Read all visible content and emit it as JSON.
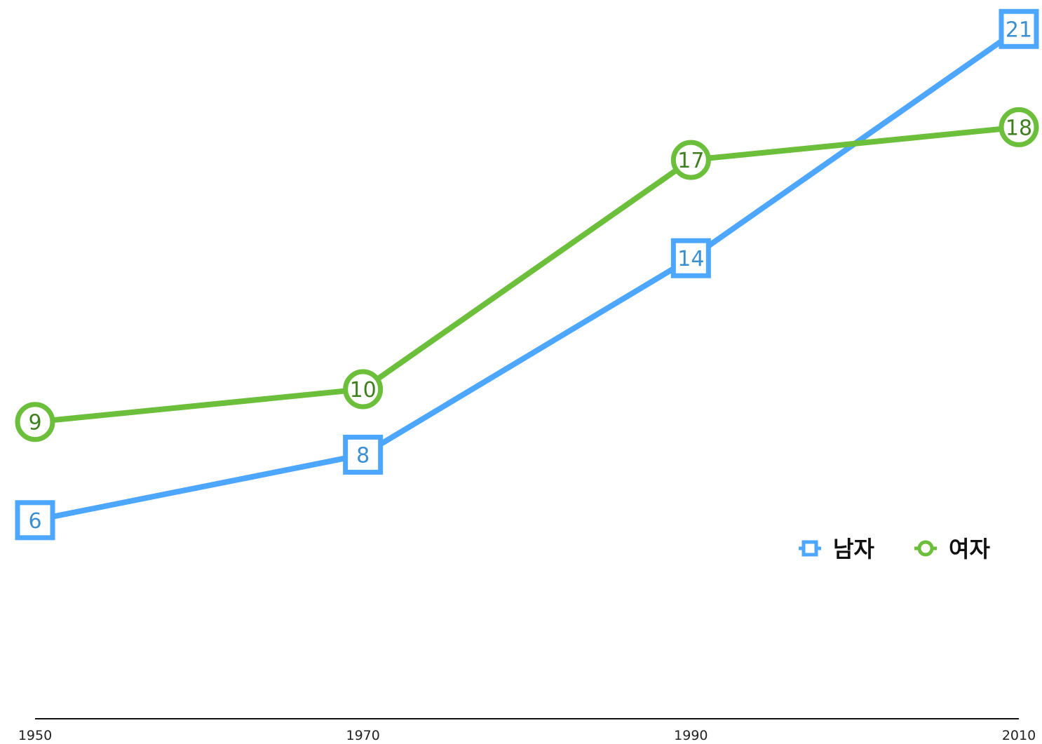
{
  "chart_data": {
    "type": "line",
    "title": "",
    "xlabel": "",
    "ylabel": "",
    "x": [
      1950,
      1970,
      1990,
      2010
    ],
    "x_tick_labels": [
      "1950",
      "1970",
      "1990",
      "2010"
    ],
    "ylim": [
      0,
      22
    ],
    "grid": false,
    "legend_position": "right",
    "series": [
      {
        "name": "남자",
        "values": [
          6,
          8,
          14,
          21
        ],
        "color": "#4da6ff",
        "marker": "square"
      },
      {
        "name": "여자",
        "values": [
          9,
          10,
          17,
          18
        ],
        "color": "#6cbf3b",
        "marker": "circle"
      }
    ]
  }
}
